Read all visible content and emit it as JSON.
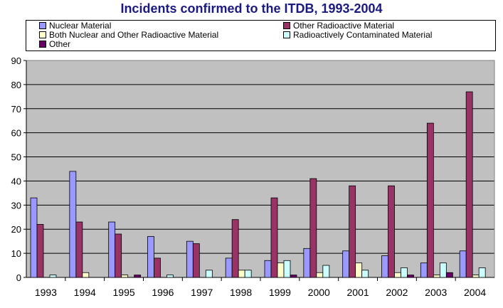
{
  "chart_data": {
    "type": "bar",
    "title": "Incidents confirmed to the ITDB, 1993-2004",
    "xlabel": "",
    "ylabel": "",
    "ylim": [
      0,
      90
    ],
    "yticks": [
      "0",
      "10",
      "20",
      "30",
      "40",
      "50",
      "60",
      "70",
      "80",
      "90"
    ],
    "grid": true,
    "legend_position": "top",
    "plot_background": "#c0c0c0",
    "categories": [
      "1993",
      "1994",
      "1995",
      "1996",
      "1997",
      "1998",
      "1999",
      "2000",
      "2001",
      "2002",
      "2003",
      "2004"
    ],
    "series": [
      {
        "name": "Nuclear Material",
        "color": "#9999ff",
        "values": [
          33,
          44,
          23,
          17,
          15,
          8,
          7,
          12,
          11,
          9,
          6,
          11
        ]
      },
      {
        "name": "Other Radioactive Material",
        "color": "#993366",
        "values": [
          22,
          23,
          18,
          8,
          14,
          24,
          33,
          41,
          38,
          38,
          64,
          77
        ]
      },
      {
        "name": "Both Nuclear and Other Radioactive Material",
        "color": "#ffffcc",
        "values": [
          0,
          2,
          1,
          0,
          0,
          3,
          6,
          2,
          6,
          2,
          1,
          1
        ]
      },
      {
        "name": "Radioactively Contaminated Material",
        "color": "#ccffff",
        "values": [
          1,
          0,
          0,
          1,
          3,
          3,
          7,
          5,
          3,
          4,
          6,
          4
        ]
      },
      {
        "name": "Other",
        "color": "#660066",
        "values": [
          0,
          0,
          1,
          0,
          0,
          0,
          1,
          0,
          0,
          1,
          2,
          0
        ]
      }
    ]
  }
}
